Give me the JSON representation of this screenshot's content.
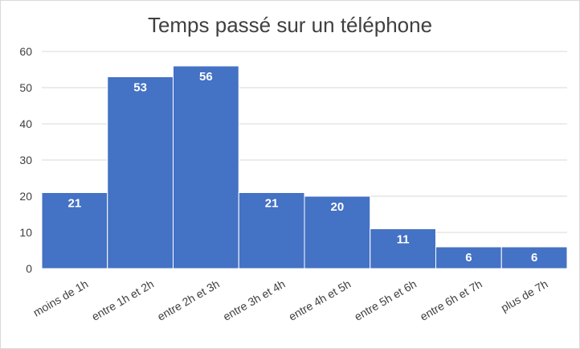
{
  "chart_data": {
    "type": "bar",
    "title": "Temps passé sur un téléphone",
    "xlabel": "",
    "ylabel": "",
    "categories": [
      "moins de 1h",
      "entre 1h et 2h",
      "entre 2h et 3h",
      "entre 3h et 4h",
      "entre  4h et 5h",
      "entre 5h et 6h",
      "entre 6h et 7h",
      "plus de 7h"
    ],
    "values": [
      21,
      53,
      56,
      21,
      20,
      11,
      6,
      6
    ],
    "ylim": [
      0,
      60
    ],
    "yticks": [
      0,
      10,
      20,
      30,
      40,
      50,
      60
    ],
    "grid": true,
    "legend": "none",
    "bar_color": "#4472C4"
  }
}
